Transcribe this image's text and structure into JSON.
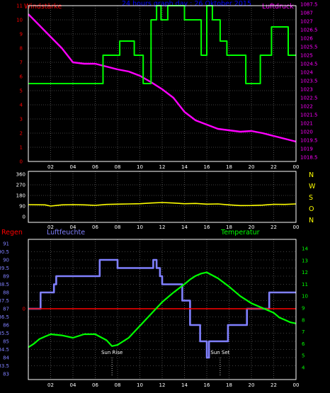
{
  "colors": {
    "wind": "#ff0000",
    "pressure": "#ff00ff",
    "direction": "#ffff00",
    "rain": "#ff0000",
    "humidity": "#8080ff",
    "temperature": "#00ff00",
    "header": "#0000ff",
    "grid": "#808080",
    "axis": "#ffffff",
    "sun": "#ffffff"
  },
  "chart_data": [
    {
      "type": "line",
      "title": "24 hours graph day : 26 Oktober 2015",
      "left_label": "Windstärke",
      "right_label": "Luftdruck",
      "x_ticks": [
        "02",
        "04",
        "06",
        "08",
        "10",
        "12",
        "14",
        "16",
        "18",
        "20",
        "22",
        "00"
      ],
      "xlim": [
        0,
        24
      ],
      "left_ylim": [
        0,
        11
      ],
      "left_ticks": [
        "0",
        "1",
        "2",
        "3",
        "4",
        "5",
        "6",
        "7",
        "8",
        "9",
        "10",
        "11"
      ],
      "right_ylim": [
        1018.5,
        1087.5
      ],
      "right_ticks": [
        "1018.5",
        "1019",
        "1019.5",
        "1020",
        "1021",
        "1021.5",
        "1022",
        "1022.5",
        "1023",
        "1023.5",
        "1024",
        "1024.5",
        "1025",
        "1025.5",
        "1026",
        "1026.5",
        "1027",
        "1087",
        "1087.5"
      ],
      "series": [
        {
          "name": "Windstärke",
          "axis": "left",
          "step": true,
          "x": [
            0,
            6.7,
            6.7,
            8.2,
            8.2,
            9.5,
            9.5,
            10.3,
            10.3,
            11.0,
            11.0,
            11.5,
            11.5,
            11.9,
            11.9,
            12.5,
            12.5,
            14.0,
            14.0,
            15.5,
            15.5,
            16.0,
            16.0,
            16.5,
            16.5,
            17.2,
            17.2,
            17.8,
            17.8,
            19.5,
            19.5,
            20.8,
            20.8,
            21.8,
            21.8,
            23.3,
            23.3,
            24
          ],
          "y": [
            5.5,
            5.5,
            7.5,
            7.5,
            8.5,
            8.5,
            7.5,
            7.5,
            5.5,
            5.5,
            10,
            10,
            11,
            11,
            10,
            10,
            11,
            11,
            10,
            10,
            7.5,
            7.5,
            11,
            11,
            10,
            10,
            8.5,
            8.5,
            7.5,
            7.5,
            5.5,
            5.5,
            7.5,
            7.5,
            9.5,
            9.5,
            7.5,
            7.5
          ]
        },
        {
          "name": "Luftdruck",
          "axis": "left",
          "x": [
            0,
            1,
            2,
            3,
            4,
            5,
            6,
            7,
            8,
            9,
            10,
            11,
            12,
            13,
            14,
            15,
            16,
            17,
            18,
            19,
            20,
            21,
            22,
            23,
            24
          ],
          "y": [
            10.4,
            9.6,
            8.8,
            8.0,
            7.0,
            6.9,
            6.9,
            6.7,
            6.5,
            6.35,
            6.05,
            5.6,
            5.1,
            4.5,
            3.5,
            2.9,
            2.6,
            2.3,
            2.2,
            2.1,
            2.15,
            2.0,
            1.8,
            1.6,
            1.4
          ]
        }
      ]
    },
    {
      "type": "line",
      "title": "",
      "right_labels": [
        "N",
        "W",
        "S",
        "O",
        "N"
      ],
      "x_ticks": [
        "02",
        "04",
        "06",
        "08",
        "10",
        "12",
        "14",
        "16",
        "18",
        "20",
        "22",
        "00"
      ],
      "xlim": [
        0,
        24
      ],
      "ylim": [
        0,
        360
      ],
      "y_ticks": [
        "0",
        "90",
        "180",
        "270",
        "360"
      ],
      "series": [
        {
          "name": "direction",
          "x": [
            0,
            1.5,
            2,
            3,
            4,
            5,
            6,
            7,
            8,
            9,
            10,
            11,
            12,
            13,
            14,
            15,
            16,
            17,
            18,
            19,
            20,
            21,
            22,
            23,
            24
          ],
          "y": [
            102,
            100,
            90,
            100,
            102,
            100,
            96,
            104,
            106,
            108,
            110,
            116,
            120,
            116,
            110,
            112,
            106,
            108,
            100,
            94,
            95,
            98,
            105,
            104,
            108
          ]
        }
      ]
    },
    {
      "type": "line",
      "title": "",
      "labels": {
        "rain": "Regen",
        "humidity": "Luftfeuchte",
        "temperature": "Temperatur"
      },
      "x_ticks": [
        "02",
        "04",
        "06",
        "08",
        "10",
        "12",
        "14",
        "16",
        "18",
        "20",
        "22",
        "00"
      ],
      "xlim": [
        0,
        24
      ],
      "left_ticks": [
        "83",
        "83.5",
        "84",
        "84.5",
        "85",
        "85.5",
        "86",
        "86.5",
        "87",
        "87.5",
        "88",
        "88.5",
        "89",
        "89.5",
        "90",
        "90.5",
        "91"
      ],
      "left_ylim": [
        83,
        91
      ],
      "right_ticks": [
        "4",
        "5",
        "6",
        "7",
        "8",
        "9",
        "10",
        "11",
        "12",
        "13",
        "14"
      ],
      "right_ylim": [
        4,
        14
      ],
      "annotations": [
        {
          "text": "Sun Rise",
          "x": 7.5
        },
        {
          "text": "Sun Set",
          "x": 17.2
        }
      ],
      "series": [
        {
          "name": "Regen",
          "axis": "left",
          "x": [
            0,
            24
          ],
          "y": [
            87,
            87
          ]
        },
        {
          "name": "Luftfeuchte",
          "axis": "left",
          "step": true,
          "x": [
            0,
            1.1,
            1.1,
            2.3,
            2.3,
            2.5,
            2.5,
            6.4,
            6.4,
            8.0,
            8.0,
            11.2,
            11.2,
            11.5,
            11.5,
            11.8,
            11.8,
            12.0,
            12.0,
            13.8,
            13.8,
            14.5,
            14.5,
            15.4,
            15.4,
            16.0,
            16.0,
            16.2,
            16.2,
            17.9,
            17.9,
            19.6,
            19.6,
            21.6,
            21.6,
            24
          ],
          "y": [
            87,
            87,
            88,
            88,
            88.5,
            88.5,
            89,
            89,
            90,
            90,
            89.5,
            89.5,
            90,
            90,
            89.5,
            89.5,
            89,
            89,
            88.5,
            88.5,
            87.5,
            87.5,
            86,
            86,
            85,
            85,
            84,
            84,
            85,
            85,
            86,
            86,
            87,
            87,
            88,
            88
          ]
        },
        {
          "name": "Temperatur",
          "axis": "right",
          "x": [
            0,
            0.5,
            1,
            1.5,
            2,
            3,
            4,
            5,
            6,
            7,
            7.5,
            8,
            9,
            10,
            11,
            12,
            13,
            14,
            14.5,
            15,
            15.5,
            16,
            17,
            18,
            19,
            20,
            21,
            22,
            22.5,
            23,
            23.5,
            24
          ],
          "y": [
            5.7,
            6.0,
            6.4,
            6.6,
            6.8,
            6.7,
            6.5,
            6.8,
            6.8,
            6.3,
            5.8,
            5.9,
            6.5,
            7.5,
            8.5,
            9.5,
            10.3,
            11.0,
            11.4,
            11.7,
            11.9,
            12.0,
            11.5,
            10.8,
            10.0,
            9.4,
            9.0,
            8.6,
            8.2,
            8.0,
            7.8,
            7.7
          ]
        }
      ]
    }
  ]
}
